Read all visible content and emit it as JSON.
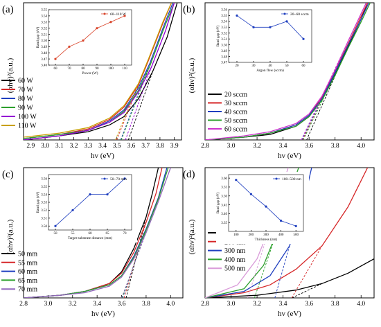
{
  "chart_data": [
    {
      "panel_label": "(a)",
      "type": "line",
      "xlabel": "hv (eV)",
      "ylabel": "(αhv)²(a.u.)",
      "xlim": [
        2.85,
        3.95
      ],
      "x_ticks": [
        "2.9",
        "3.0",
        "3.1",
        "3.2",
        "3.3",
        "3.4",
        "3.5",
        "3.6",
        "3.7",
        "3.8",
        "3.9"
      ],
      "series": [
        {
          "name": "60 W",
          "color": "#000000",
          "x": [
            2.85,
            3.1,
            3.3,
            3.45,
            3.55,
            3.65,
            3.75,
            3.85,
            3.92
          ],
          "y": [
            0.0,
            0.03,
            0.06,
            0.11,
            0.17,
            0.3,
            0.5,
            0.75,
            1.0
          ]
        },
        {
          "name": "70 W",
          "color": "#d62728",
          "x": [
            2.85,
            3.1,
            3.3,
            3.45,
            3.55,
            3.65,
            3.72,
            3.82,
            3.88
          ],
          "y": [
            0.01,
            0.04,
            0.08,
            0.15,
            0.24,
            0.4,
            0.58,
            0.85,
            1.0
          ]
        },
        {
          "name": "80 W",
          "color": "#1f3fbf",
          "x": [
            2.85,
            3.1,
            3.3,
            3.45,
            3.55,
            3.65,
            3.73,
            3.83,
            3.89
          ],
          "y": [
            0.01,
            0.04,
            0.07,
            0.14,
            0.22,
            0.38,
            0.56,
            0.84,
            1.0
          ]
        },
        {
          "name": "90 W",
          "color": "#2ca02c",
          "x": [
            2.85,
            3.1,
            3.3,
            3.45,
            3.55,
            3.65,
            3.73,
            3.83,
            3.9
          ],
          "y": [
            0.01,
            0.04,
            0.07,
            0.13,
            0.21,
            0.36,
            0.54,
            0.82,
            1.0
          ]
        },
        {
          "name": "100 W",
          "color": "#9400d3",
          "x": [
            2.85,
            3.1,
            3.3,
            3.45,
            3.55,
            3.65,
            3.74,
            3.84,
            3.9
          ],
          "y": [
            0.0,
            0.03,
            0.07,
            0.13,
            0.2,
            0.35,
            0.53,
            0.8,
            1.0
          ]
        },
        {
          "name": "110 W",
          "color": "#c8a000",
          "x": [
            2.85,
            3.1,
            3.3,
            3.45,
            3.55,
            3.65,
            3.72,
            3.82,
            3.88
          ],
          "y": [
            0.02,
            0.05,
            0.09,
            0.16,
            0.25,
            0.41,
            0.59,
            0.86,
            1.0
          ]
        }
      ],
      "inset": {
        "xlabel": "Power (W)",
        "ylabel": "Band gap (eV)",
        "legend": "60~110 W",
        "color": "#d9442a",
        "x": [
          60,
          70,
          80,
          90,
          100,
          110
        ],
        "y": [
          3.47,
          3.49,
          3.5,
          3.52,
          3.53,
          3.54
        ],
        "xlim": [
          55,
          115
        ],
        "ylim": [
          3.46,
          3.55
        ],
        "x_ticks": [
          "60",
          "70",
          "80",
          "90",
          "100",
          "110"
        ],
        "y_ticks": [
          "3.46",
          "3.47",
          "3.48",
          "3.49",
          "3.50",
          "3.51",
          "3.52",
          "3.53",
          "3.54",
          "3.55"
        ]
      }
    },
    {
      "panel_label": "(b)",
      "type": "line",
      "xlabel": "hv (eV)",
      "ylabel": "(αhv)²(a.u.)",
      "xlim": [
        2.8,
        4.1
      ],
      "x_ticks": [
        "2.8",
        "3.0",
        "3.2",
        "3.4",
        "3.6",
        "3.8",
        "4.0"
      ],
      "series": [
        {
          "name": "20 sccm",
          "color": "#000000",
          "x": [
            2.8,
            3.1,
            3.3,
            3.5,
            3.6,
            3.7,
            3.8,
            3.9,
            4.0,
            4.05
          ],
          "y": [
            0.0,
            0.02,
            0.04,
            0.1,
            0.17,
            0.3,
            0.48,
            0.68,
            0.88,
            1.0
          ]
        },
        {
          "name": "30 sccm",
          "color": "#d62728",
          "x": [
            2.8,
            3.1,
            3.3,
            3.5,
            3.6,
            3.7,
            3.8,
            3.9,
            4.0,
            4.05
          ],
          "y": [
            0.0,
            0.02,
            0.05,
            0.11,
            0.18,
            0.31,
            0.5,
            0.7,
            0.9,
            1.0
          ]
        },
        {
          "name": "40 sccm",
          "color": "#1f3fbf",
          "x": [
            2.8,
            3.1,
            3.3,
            3.5,
            3.6,
            3.7,
            3.8,
            3.9,
            4.0,
            4.06
          ],
          "y": [
            0.0,
            0.02,
            0.05,
            0.11,
            0.18,
            0.3,
            0.49,
            0.69,
            0.88,
            1.0
          ]
        },
        {
          "name": "50 sccm",
          "color": "#2ca02c",
          "x": [
            2.8,
            3.1,
            3.3,
            3.5,
            3.6,
            3.7,
            3.8,
            3.9,
            4.0,
            4.07
          ],
          "y": [
            0.0,
            0.02,
            0.05,
            0.1,
            0.17,
            0.29,
            0.47,
            0.67,
            0.86,
            1.0
          ]
        },
        {
          "name": "60 sccm",
          "color": "#cc33cc",
          "x": [
            2.8,
            3.1,
            3.3,
            3.5,
            3.6,
            3.7,
            3.8,
            3.9,
            4.0,
            4.04
          ],
          "y": [
            0.0,
            0.03,
            0.06,
            0.12,
            0.19,
            0.32,
            0.51,
            0.72,
            0.92,
            1.0
          ]
        }
      ],
      "inset": {
        "xlabel": "Argon flow (sccm)",
        "ylabel": "Band gap (eV)",
        "legend": "20~60 sccm",
        "color": "#1f3fbf",
        "x": [
          20,
          30,
          40,
          50,
          60
        ],
        "y": [
          3.55,
          3.53,
          3.53,
          3.54,
          3.51
        ],
        "xlim": [
          15,
          65
        ],
        "ylim": [
          3.47,
          3.56
        ],
        "x_ticks": [
          "20",
          "30",
          "40",
          "50",
          "60"
        ],
        "y_ticks": [
          "3.47",
          "3.48",
          "3.49",
          "3.50",
          "3.51",
          "3.52",
          "3.53",
          "3.54",
          "3.55",
          "3.56"
        ]
      }
    },
    {
      "panel_label": "(c)",
      "type": "line",
      "xlabel": "hv (eV)",
      "ylabel": "(αhv)²(a.u.)",
      "xlim": [
        2.8,
        4.1
      ],
      "x_ticks": [
        "2.8",
        "3.0",
        "3.2",
        "3.4",
        "3.6",
        "3.8",
        "4.0"
      ],
      "series": [
        {
          "name": "50 mm",
          "color": "#000000",
          "x": [
            2.8,
            3.1,
            3.3,
            3.5,
            3.6,
            3.7,
            3.8,
            3.85,
            3.9
          ],
          "y": [
            0.0,
            0.02,
            0.05,
            0.11,
            0.2,
            0.38,
            0.62,
            0.8,
            1.0
          ]
        },
        {
          "name": "55 mm",
          "color": "#d62728",
          "x": [
            2.8,
            3.1,
            3.3,
            3.5,
            3.6,
            3.7,
            3.8,
            3.88,
            3.93
          ],
          "y": [
            0.0,
            0.02,
            0.05,
            0.11,
            0.19,
            0.35,
            0.58,
            0.8,
            1.0
          ]
        },
        {
          "name": "60 mm",
          "color": "#1f3fbf",
          "x": [
            2.8,
            3.1,
            3.3,
            3.5,
            3.6,
            3.7,
            3.8,
            3.9,
            3.97
          ],
          "y": [
            0.0,
            0.02,
            0.05,
            0.1,
            0.17,
            0.32,
            0.53,
            0.77,
            1.0
          ]
        },
        {
          "name": "65 mm",
          "color": "#2ca02c",
          "x": [
            2.8,
            3.1,
            3.3,
            3.5,
            3.6,
            3.7,
            3.8,
            3.9,
            3.98
          ],
          "y": [
            0.0,
            0.02,
            0.05,
            0.1,
            0.17,
            0.31,
            0.52,
            0.76,
            1.0
          ]
        },
        {
          "name": "70 mm",
          "color": "#9467bd",
          "x": [
            2.8,
            3.1,
            3.3,
            3.5,
            3.6,
            3.7,
            3.8,
            3.9,
            4.0
          ],
          "y": [
            0.0,
            0.02,
            0.04,
            0.09,
            0.16,
            0.3,
            0.5,
            0.74,
            1.0
          ]
        }
      ],
      "inset": {
        "xlabel": "Target-substrate distance (mm)",
        "ylabel": "Band gap (eV)",
        "legend": "50~70 mm",
        "color": "#1f3fbf",
        "x": [
          50,
          55,
          60,
          65,
          70
        ],
        "y": [
          3.5,
          3.52,
          3.54,
          3.54,
          3.56
        ],
        "xlim": [
          48,
          72
        ],
        "ylim": [
          3.495,
          3.565
        ],
        "x_ticks": [
          "50",
          "55",
          "60",
          "65",
          "70"
        ],
        "y_ticks": [
          "3.50",
          "3.51",
          "3.52",
          "3.53",
          "3.54",
          "3.55",
          "3.56"
        ]
      }
    },
    {
      "panel_label": "(d)",
      "type": "line",
      "xlabel": "hv (eV)",
      "ylabel": "(αhv)²(a.u.)",
      "xlim": [
        2.8,
        4.1
      ],
      "x_ticks": [
        "2.8",
        "3.0",
        "3.2",
        "3.4",
        "3.6",
        "3.8",
        "4.0"
      ],
      "series": [
        {
          "name": "100 nm",
          "color": "#000000",
          "x": [
            2.8,
            3.2,
            3.5,
            3.7,
            3.9,
            4.1
          ],
          "y": [
            0.0,
            0.02,
            0.06,
            0.11,
            0.19,
            0.3
          ]
        },
        {
          "name": "200 nm",
          "color": "#d62728",
          "x": [
            2.8,
            3.1,
            3.3,
            3.5,
            3.7,
            3.9,
            4.05
          ],
          "y": [
            0.0,
            0.04,
            0.1,
            0.22,
            0.4,
            0.7,
            1.0
          ]
        },
        {
          "name": "300 nm",
          "color": "#1f3fbf",
          "x": [
            2.8,
            3.1,
            3.3,
            3.45,
            3.55,
            3.62
          ],
          "y": [
            0.0,
            0.05,
            0.17,
            0.4,
            0.7,
            1.0
          ]
        },
        {
          "name": "400 nm",
          "color": "#2ca02c",
          "x": [
            2.8,
            3.1,
            3.25,
            3.35,
            3.45,
            3.52
          ],
          "y": [
            0.0,
            0.07,
            0.25,
            0.5,
            0.8,
            1.0
          ]
        },
        {
          "name": "500 nm",
          "color": "#d99ad9",
          "x": [
            2.8,
            3.05,
            3.2,
            3.3,
            3.38,
            3.44
          ],
          "y": [
            0.0,
            0.1,
            0.3,
            0.55,
            0.82,
            1.0
          ]
        }
      ],
      "inset": {
        "xlabel": "Thickness (nm)",
        "ylabel": "Band gap (eV)",
        "legend": "100~500 nm",
        "color": "#1f3fbf",
        "x": [
          100,
          200,
          300,
          400,
          500
        ],
        "y": [
          3.59,
          3.51,
          3.44,
          3.36,
          3.33
        ],
        "xlim": [
          50,
          550
        ],
        "ylim": [
          3.3,
          3.62
        ],
        "x_ticks": [
          "100",
          "200",
          "300",
          "400",
          "500"
        ],
        "y_ticks": [
          "3.35",
          "3.40",
          "3.45",
          "3.50",
          "3.55",
          "3.60"
        ]
      }
    }
  ]
}
